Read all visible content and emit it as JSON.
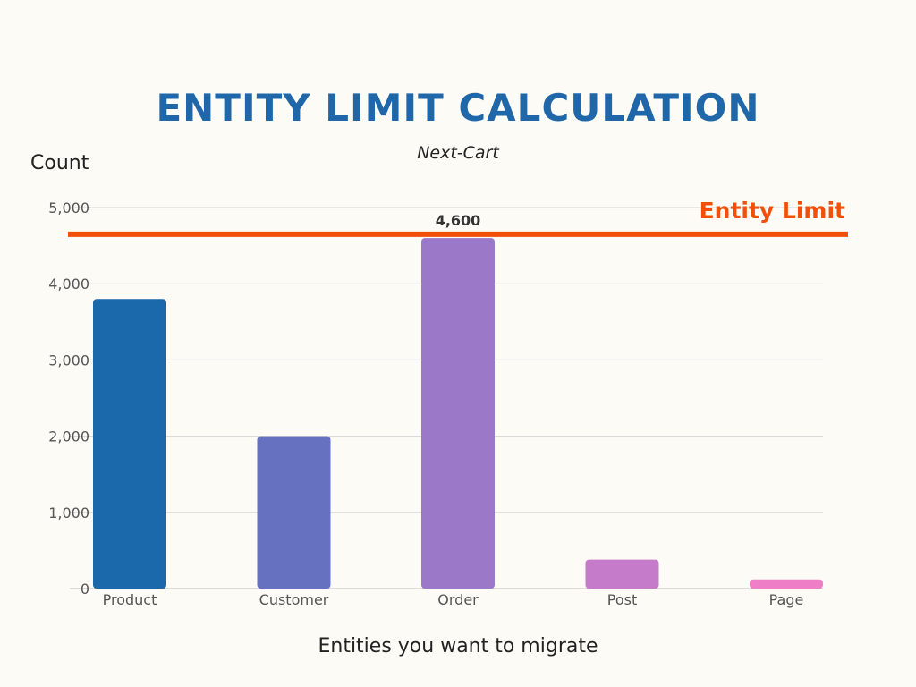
{
  "chart_data": {
    "type": "bar",
    "title": "ENTITY LIMIT CALCULATION",
    "subtitle": "Next-Cart",
    "ylabel": "Count",
    "xlabel": "Entities you want to migrate",
    "categories": [
      "Product",
      "Customer",
      "Order",
      "Post",
      "Page"
    ],
    "values": [
      3800,
      2000,
      4600,
      380,
      120
    ],
    "colors": [
      "#1b69aa",
      "#6672c0",
      "#9b79c8",
      "#c57bc9",
      "#ee7fc7"
    ],
    "data_labels": [
      null,
      null,
      "4,600",
      null,
      null
    ],
    "ylim": [
      0,
      5000
    ],
    "yticks": [
      0,
      1000,
      2000,
      3000,
      4000,
      5000
    ],
    "ytick_labels": [
      "0",
      "1,000",
      "2,000",
      "3,000",
      "4,000",
      "5,000"
    ],
    "grid": true,
    "reference_line": {
      "label": "Entity Limit",
      "value": 4650,
      "color": "#f2500a"
    }
  }
}
